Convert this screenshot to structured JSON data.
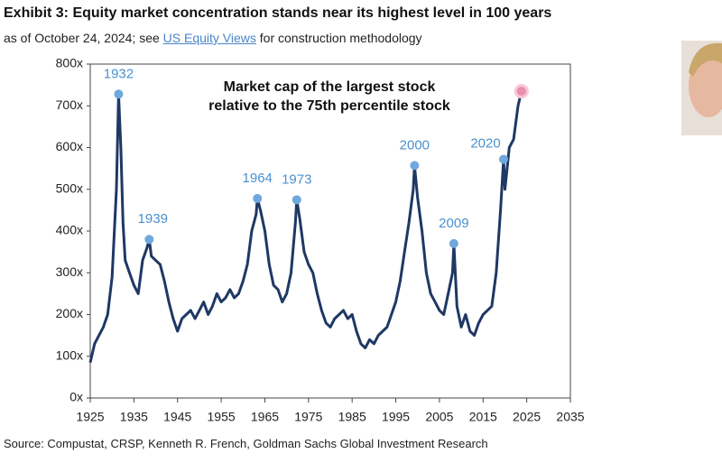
{
  "chart_data": {
    "type": "line",
    "title": "Exhibit 3: Equity market concentration stands near its highest level in 100 years",
    "subtitle_before": "as of October 24, 2024; see ",
    "subtitle_link": "US Equity Views",
    "subtitle_after": " for construction methodology",
    "annotation": [
      "Market cap of the largest stock",
      "relative to the 75th percentile stock"
    ],
    "source": "Source: Compustat, CRSP, Kenneth R. French, Goldman Sachs Global Investment Research",
    "xlim": [
      1925,
      2035
    ],
    "xticks": [
      1925,
      1935,
      1945,
      1955,
      1965,
      1975,
      1985,
      1995,
      2005,
      2015,
      2025,
      2035
    ],
    "ylim": [
      0,
      800
    ],
    "yticks": [
      {
        "value": 0,
        "label": "0x"
      },
      {
        "value": 100,
        "label": "100x"
      },
      {
        "value": 200,
        "label": "200x"
      },
      {
        "value": 300,
        "label": "300x"
      },
      {
        "value": 400,
        "label": "400x"
      },
      {
        "value": 500,
        "label": "500x"
      },
      {
        "value": 600,
        "label": "600x"
      },
      {
        "value": 700,
        "label": "700x"
      },
      {
        "value": 800,
        "label": "800x"
      }
    ],
    "series": [
      {
        "color": "#1f3864",
        "x": [
          1925,
          1926,
          1927,
          1928,
          1929,
          1930,
          1931,
          1931.5,
          1932,
          1932.5,
          1933,
          1934,
          1935,
          1936,
          1937,
          1938,
          1938.5,
          1939,
          1940,
          1941,
          1942,
          1943,
          1944,
          1945,
          1946,
          1947,
          1948,
          1949,
          1950,
          1951,
          1952,
          1953,
          1954,
          1955,
          1956,
          1957,
          1958,
          1959,
          1960,
          1961,
          1962,
          1963,
          1963.3,
          1964,
          1965,
          1966,
          1967,
          1968,
          1969,
          1970,
          1971,
          1972,
          1972.3,
          1973,
          1974,
          1975,
          1976,
          1977,
          1978,
          1979,
          1980,
          1981,
          1982,
          1983,
          1984,
          1985,
          1986,
          1987,
          1988,
          1989,
          1990,
          1991,
          1992,
          1993,
          1994,
          1995,
          1996,
          1997,
          1998,
          1999,
          1999.3,
          2000,
          2001,
          2002,
          2003,
          2004,
          2005,
          2006,
          2007,
          2008,
          2008.3,
          2009,
          2010,
          2011,
          2012,
          2013,
          2014,
          2015,
          2016,
          2017,
          2018,
          2019,
          2019.7,
          2020,
          2021,
          2022,
          2023,
          2023.8,
          2024
        ],
        "values": [
          85,
          130,
          150,
          170,
          200,
          290,
          500,
          728,
          600,
          420,
          330,
          300,
          270,
          250,
          330,
          360,
          380,
          340,
          330,
          320,
          280,
          230,
          190,
          160,
          190,
          200,
          210,
          190,
          210,
          230,
          200,
          220,
          250,
          230,
          240,
          260,
          240,
          250,
          280,
          320,
          400,
          440,
          478,
          450,
          400,
          320,
          270,
          260,
          230,
          250,
          300,
          420,
          475,
          430,
          350,
          320,
          300,
          250,
          210,
          180,
          170,
          190,
          200,
          210,
          190,
          200,
          160,
          130,
          120,
          140,
          130,
          150,
          160,
          170,
          200,
          230,
          280,
          350,
          420,
          500,
          557,
          480,
          400,
          300,
          250,
          230,
          210,
          200,
          250,
          300,
          370,
          220,
          170,
          200,
          160,
          150,
          180,
          200,
          210,
          220,
          300,
          450,
          572,
          500,
          600,
          620,
          700,
          735,
          730
        ]
      }
    ],
    "peaks": [
      {
        "label": "1932",
        "x": 1931.5,
        "y": 728
      },
      {
        "label": "1939",
        "x": 1938.5,
        "y": 380
      },
      {
        "label": "1964",
        "x": 1963.3,
        "y": 478
      },
      {
        "label": "1973",
        "x": 1972.3,
        "y": 475
      },
      {
        "label": "2000",
        "x": 1999.3,
        "y": 557
      },
      {
        "label": "2009",
        "x": 2008.3,
        "y": 370
      },
      {
        "label": "2020",
        "x": 2019.7,
        "y": 572
      },
      {
        "x": 2023.8,
        "y": 735
      }
    ]
  }
}
